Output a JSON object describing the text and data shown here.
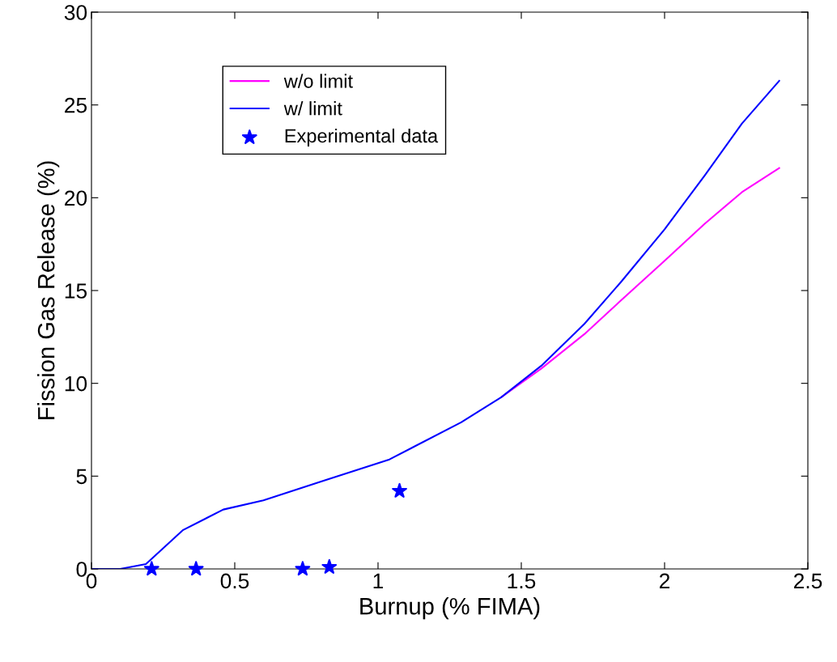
{
  "chart_data": {
    "type": "line",
    "xlabel": "Burnup (% FIMA)",
    "ylabel": "Fission Gas Release (%)",
    "xlim": [
      0,
      2.5
    ],
    "xticks": [
      0,
      0.5,
      1,
      1.5,
      2,
      2.5
    ],
    "ylim": [
      0,
      30
    ],
    "yticks": [
      0,
      5,
      10,
      15,
      20,
      25,
      30
    ],
    "grid": false,
    "legend": "top left",
    "series": [
      {
        "name": "w/o limit",
        "color": "#ff00ff",
        "x": [
          1.43,
          1.57,
          1.72,
          1.85,
          2.0,
          2.14,
          2.27,
          2.4
        ],
        "values": [
          9.25,
          10.8,
          12.65,
          14.5,
          16.6,
          18.6,
          20.3,
          21.6
        ]
      },
      {
        "name": "w/ limit",
        "color": "#0000ff",
        "x": [
          0,
          0.1,
          0.19,
          0.32,
          0.46,
          0.6,
          0.81,
          1.04,
          1.29,
          1.43,
          1.57,
          1.72,
          1.85,
          2.0,
          2.14,
          2.27,
          2.4
        ],
        "values": [
          0,
          0,
          0.26,
          2.1,
          3.2,
          3.7,
          4.75,
          5.9,
          7.9,
          9.25,
          10.95,
          13.2,
          15.5,
          18.3,
          21.2,
          24.0,
          26.3
        ]
      },
      {
        "name": "Experimental data",
        "color": "#0000ff",
        "type": "scatter",
        "marker": "star",
        "x": [
          0.21,
          0.365,
          0.737,
          0.83,
          1.075
        ],
        "values": [
          0,
          0,
          0,
          0.1,
          4.2
        ]
      }
    ]
  }
}
